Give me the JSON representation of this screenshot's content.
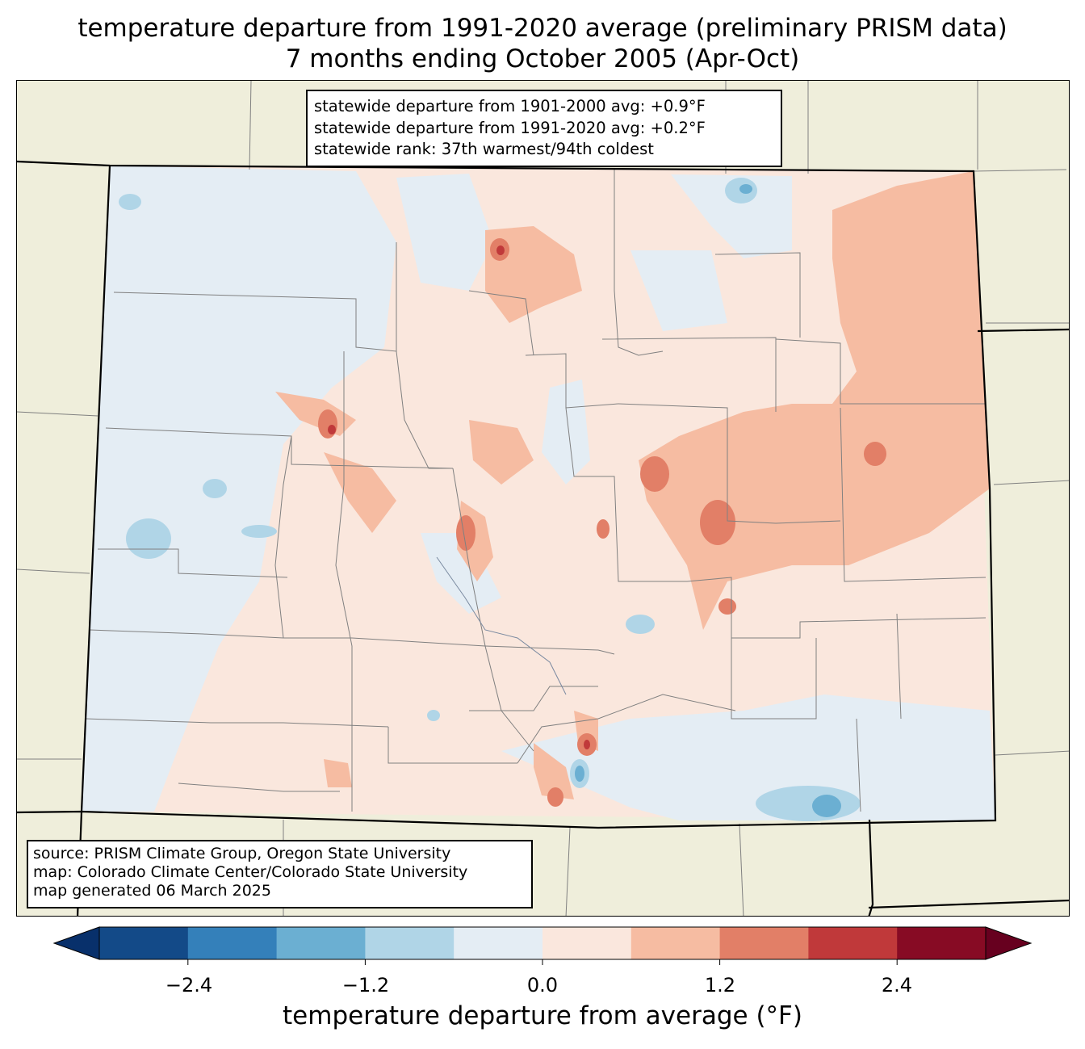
{
  "title": {
    "line1": "temperature departure from 1991-2020 average (preliminary PRISM data)",
    "line2": "7 months ending October 2005 (Apr-Oct)"
  },
  "stats": {
    "line1": "statewide departure from 1901-2000 avg: +0.9°F",
    "line2": "statewide departure from 1991-2020 avg: +0.2°F",
    "line3": "statewide rank: 37th warmest/94th coldest"
  },
  "source": {
    "line1": "source: PRISM Climate Group, Oregon State University",
    "line2": "map: Colorado Climate Center/Colorado State University",
    "line3": "map generated 06 March 2025"
  },
  "colorbar": {
    "label": "temperature departure from average (°F)",
    "ticks": [
      "−2.4",
      "−1.2",
      "0.0",
      "1.2",
      "2.4"
    ],
    "min": -3.0,
    "max": 3.0,
    "step": 0.6,
    "colors": [
      "#08306b",
      "#134a88",
      "#3480ba",
      "#6bafd2",
      "#b0d5e7",
      "#e4edf4",
      "#fae7dd",
      "#f6bca2",
      "#e27f67",
      "#c0393a",
      "#870b24",
      "#67001f"
    ]
  },
  "map_colors": {
    "background": "#efeedb",
    "near_zero_negative": "#e4edf4",
    "near_zero_positive": "#fae7dd",
    "warm_1": "#f6bca2",
    "warm_2": "#e27f67",
    "warm_3": "#c0393a",
    "cool_1": "#b0d5e7",
    "cool_2": "#6bafd2",
    "cool_3": "#3480ba",
    "county_line": "#808080",
    "state_line": "#000000"
  }
}
